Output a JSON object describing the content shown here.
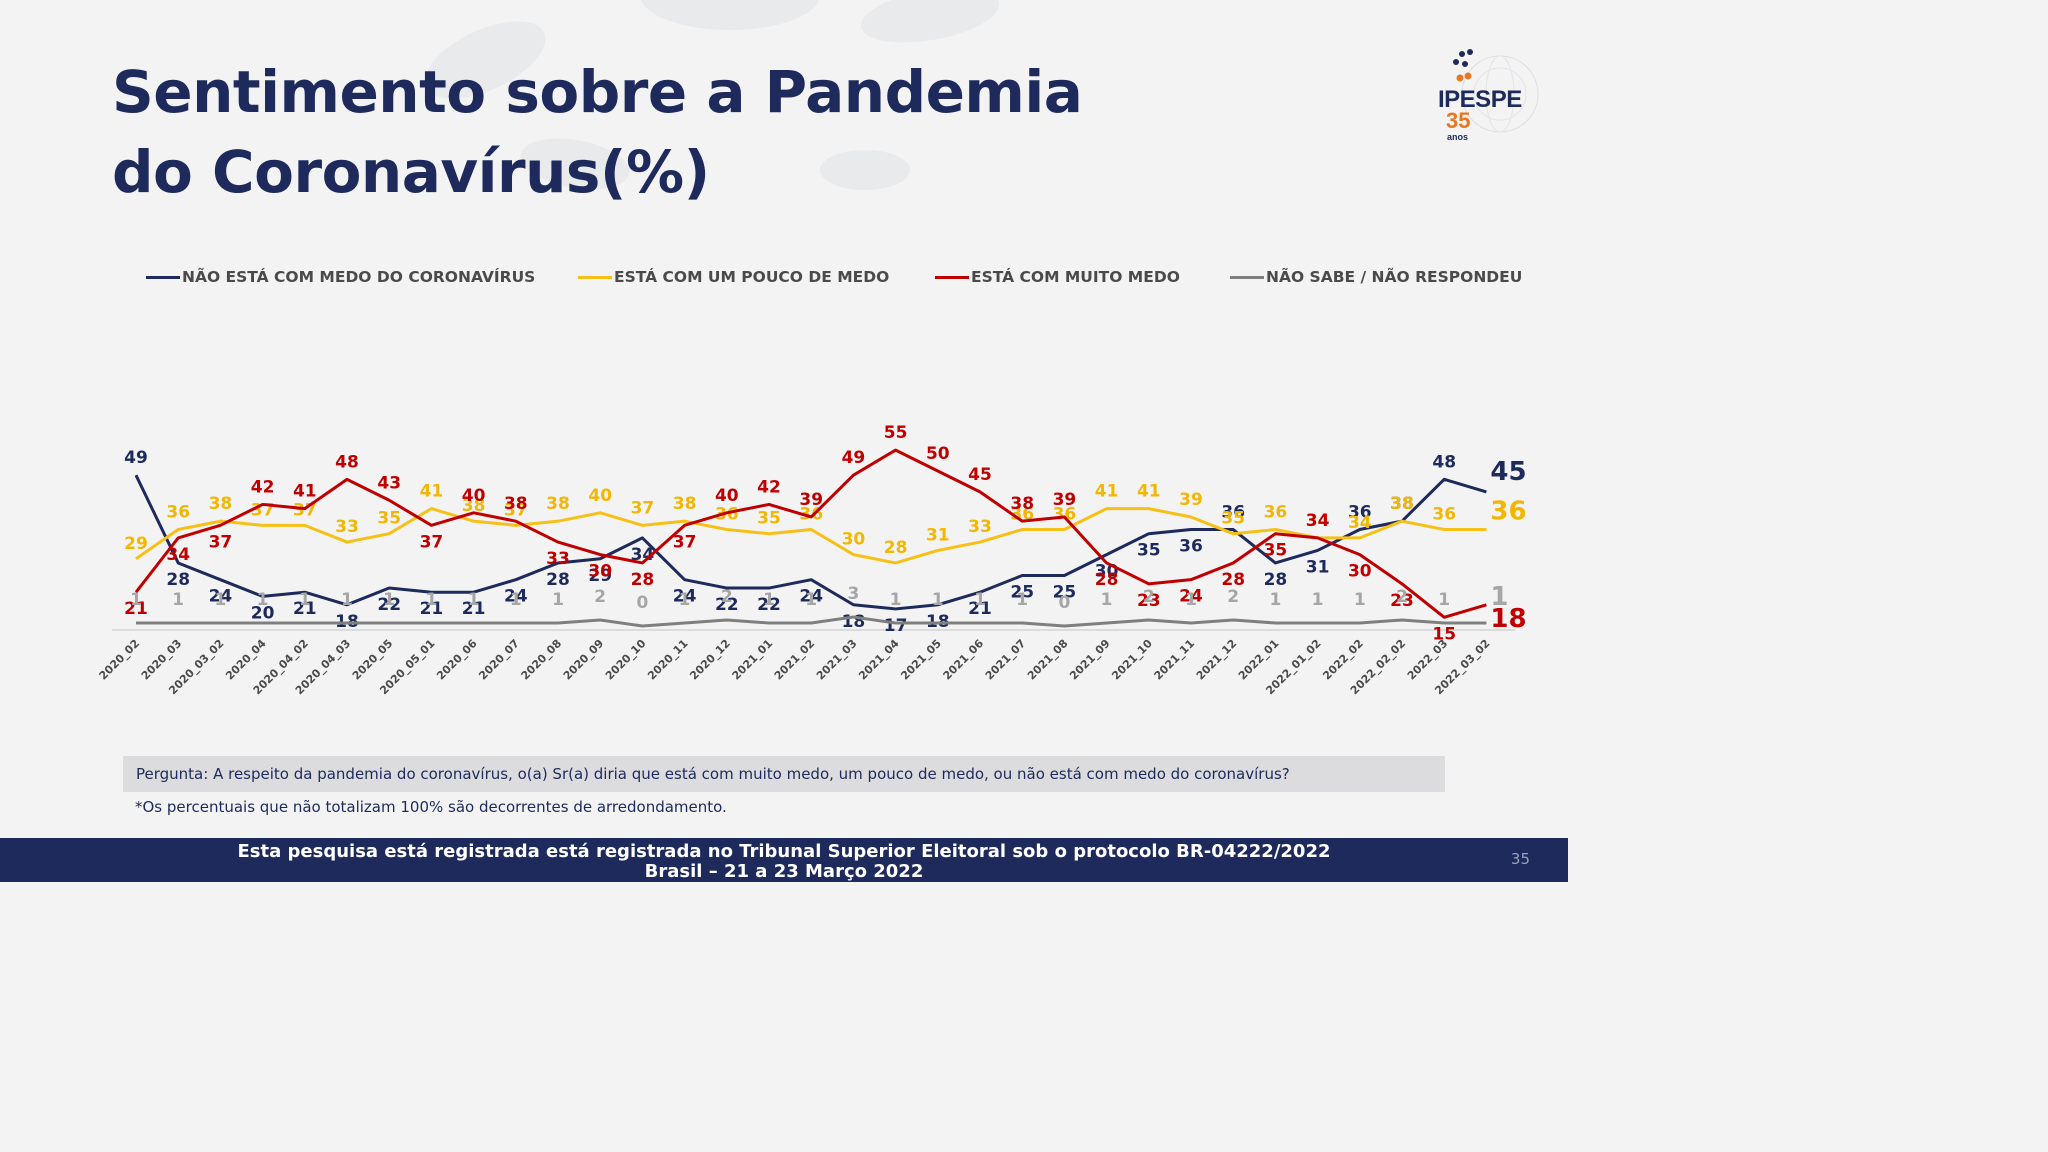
{
  "title": "Sentimento sobre a Pandemia\ndo Coronavírus(%)",
  "logo": {
    "name": "IPESPE",
    "years": "35",
    "anos": "anos"
  },
  "colors": {
    "navy": "#1d2a5b",
    "yellow": "#f7c017",
    "red": "#c00000",
    "gray": "#7f7f7f",
    "logo_orange": "#e87722"
  },
  "legend": [
    {
      "label": "NÃO ESTÁ COM MEDO DO CORONAVÍRUS",
      "color": "#1d2a5b"
    },
    {
      "label": "ESTÁ COM UM POUCO DE MEDO",
      "color": "#f7c017"
    },
    {
      "label": "ESTÁ COM MUITO MEDO",
      "color": "#c00000"
    },
    {
      "label": "NÃO SABE / NÃO RESPONDEU",
      "color": "#7f7f7f"
    }
  ],
  "chart_data": {
    "type": "line",
    "title": "Sentimento sobre a Pandemia do Coronavírus(%)",
    "x": [
      "2020_02",
      "2020_03",
      "2020_03_02",
      "2020_04",
      "2020_04_02",
      "2020_04_03",
      "2020_05",
      "2020_05_01",
      "2020_06",
      "2020_07",
      "2020_08",
      "2020_09",
      "2020_10",
      "2020_11",
      "2020_12",
      "2021_01",
      "2021_02",
      "2021_03",
      "2021_04",
      "2021_05",
      "2021_06",
      "2021_07",
      "2021_08",
      "2021_09",
      "2021_10",
      "2021_11",
      "2021_12",
      "2022_01",
      "2022_01_02",
      "2022_02",
      "2022_02_02",
      "2022_03",
      "2022_03_02"
    ],
    "series": [
      {
        "name": "NÃO ESTÁ COM MEDO DO CORONAVÍRUS",
        "color": "#1d2a5b",
        "values": [
          49,
          28,
          24,
          20,
          21,
          18,
          22,
          21,
          21,
          24,
          28,
          29,
          34,
          24,
          22,
          22,
          24,
          18,
          17,
          18,
          21,
          25,
          25,
          30,
          35,
          36,
          36,
          28,
          31,
          36,
          38,
          48,
          45
        ]
      },
      {
        "name": "ESTÁ COM UM POUCO DE MEDO",
        "color": "#f7c017",
        "values": [
          29,
          36,
          38,
          37,
          37,
          33,
          35,
          41,
          38,
          37,
          38,
          40,
          37,
          38,
          36,
          35,
          36,
          30,
          28,
          31,
          33,
          36,
          36,
          41,
          41,
          39,
          35,
          36,
          34,
          34,
          38,
          36,
          36
        ]
      },
      {
        "name": "ESTÁ COM MUITO MEDO",
        "color": "#c00000",
        "values": [
          21,
          34,
          37,
          42,
          41,
          48,
          43,
          37,
          40,
          38,
          33,
          30,
          28,
          37,
          40,
          42,
          39,
          49,
          55,
          50,
          45,
          38,
          39,
          28,
          23,
          24,
          28,
          35,
          34,
          30,
          23,
          15,
          18
        ]
      },
      {
        "name": "NÃO SABE / NÃO RESPONDEU",
        "color": "#7f7f7f",
        "values": [
          1,
          1,
          1,
          1,
          1,
          1,
          1,
          1,
          1,
          1,
          1,
          2,
          0,
          1,
          2,
          1,
          1,
          3,
          1,
          1,
          1,
          1,
          0,
          1,
          2,
          1,
          2,
          1,
          1,
          1,
          2,
          1,
          1
        ]
      }
    ],
    "ylim": [
      0,
      60
    ],
    "grid": false,
    "legend_position": "top"
  },
  "question": "Pergunta:  A respeito da pandemia do coronavírus, o(a) Sr(a) diria que está com muito medo, um pouco de medo, ou não está com medo do coronavírus?",
  "footnote": "*Os percentuais que não totalizam 100% são decorrentes de arredondamento.",
  "footer": {
    "line1": "Esta pesquisa está registrada está registrada no Tribunal Superior Eleitoral sob o protocolo BR-04222/2022",
    "line2": "Brasil – 21 a 23 Março 2022"
  },
  "page_number": "35"
}
